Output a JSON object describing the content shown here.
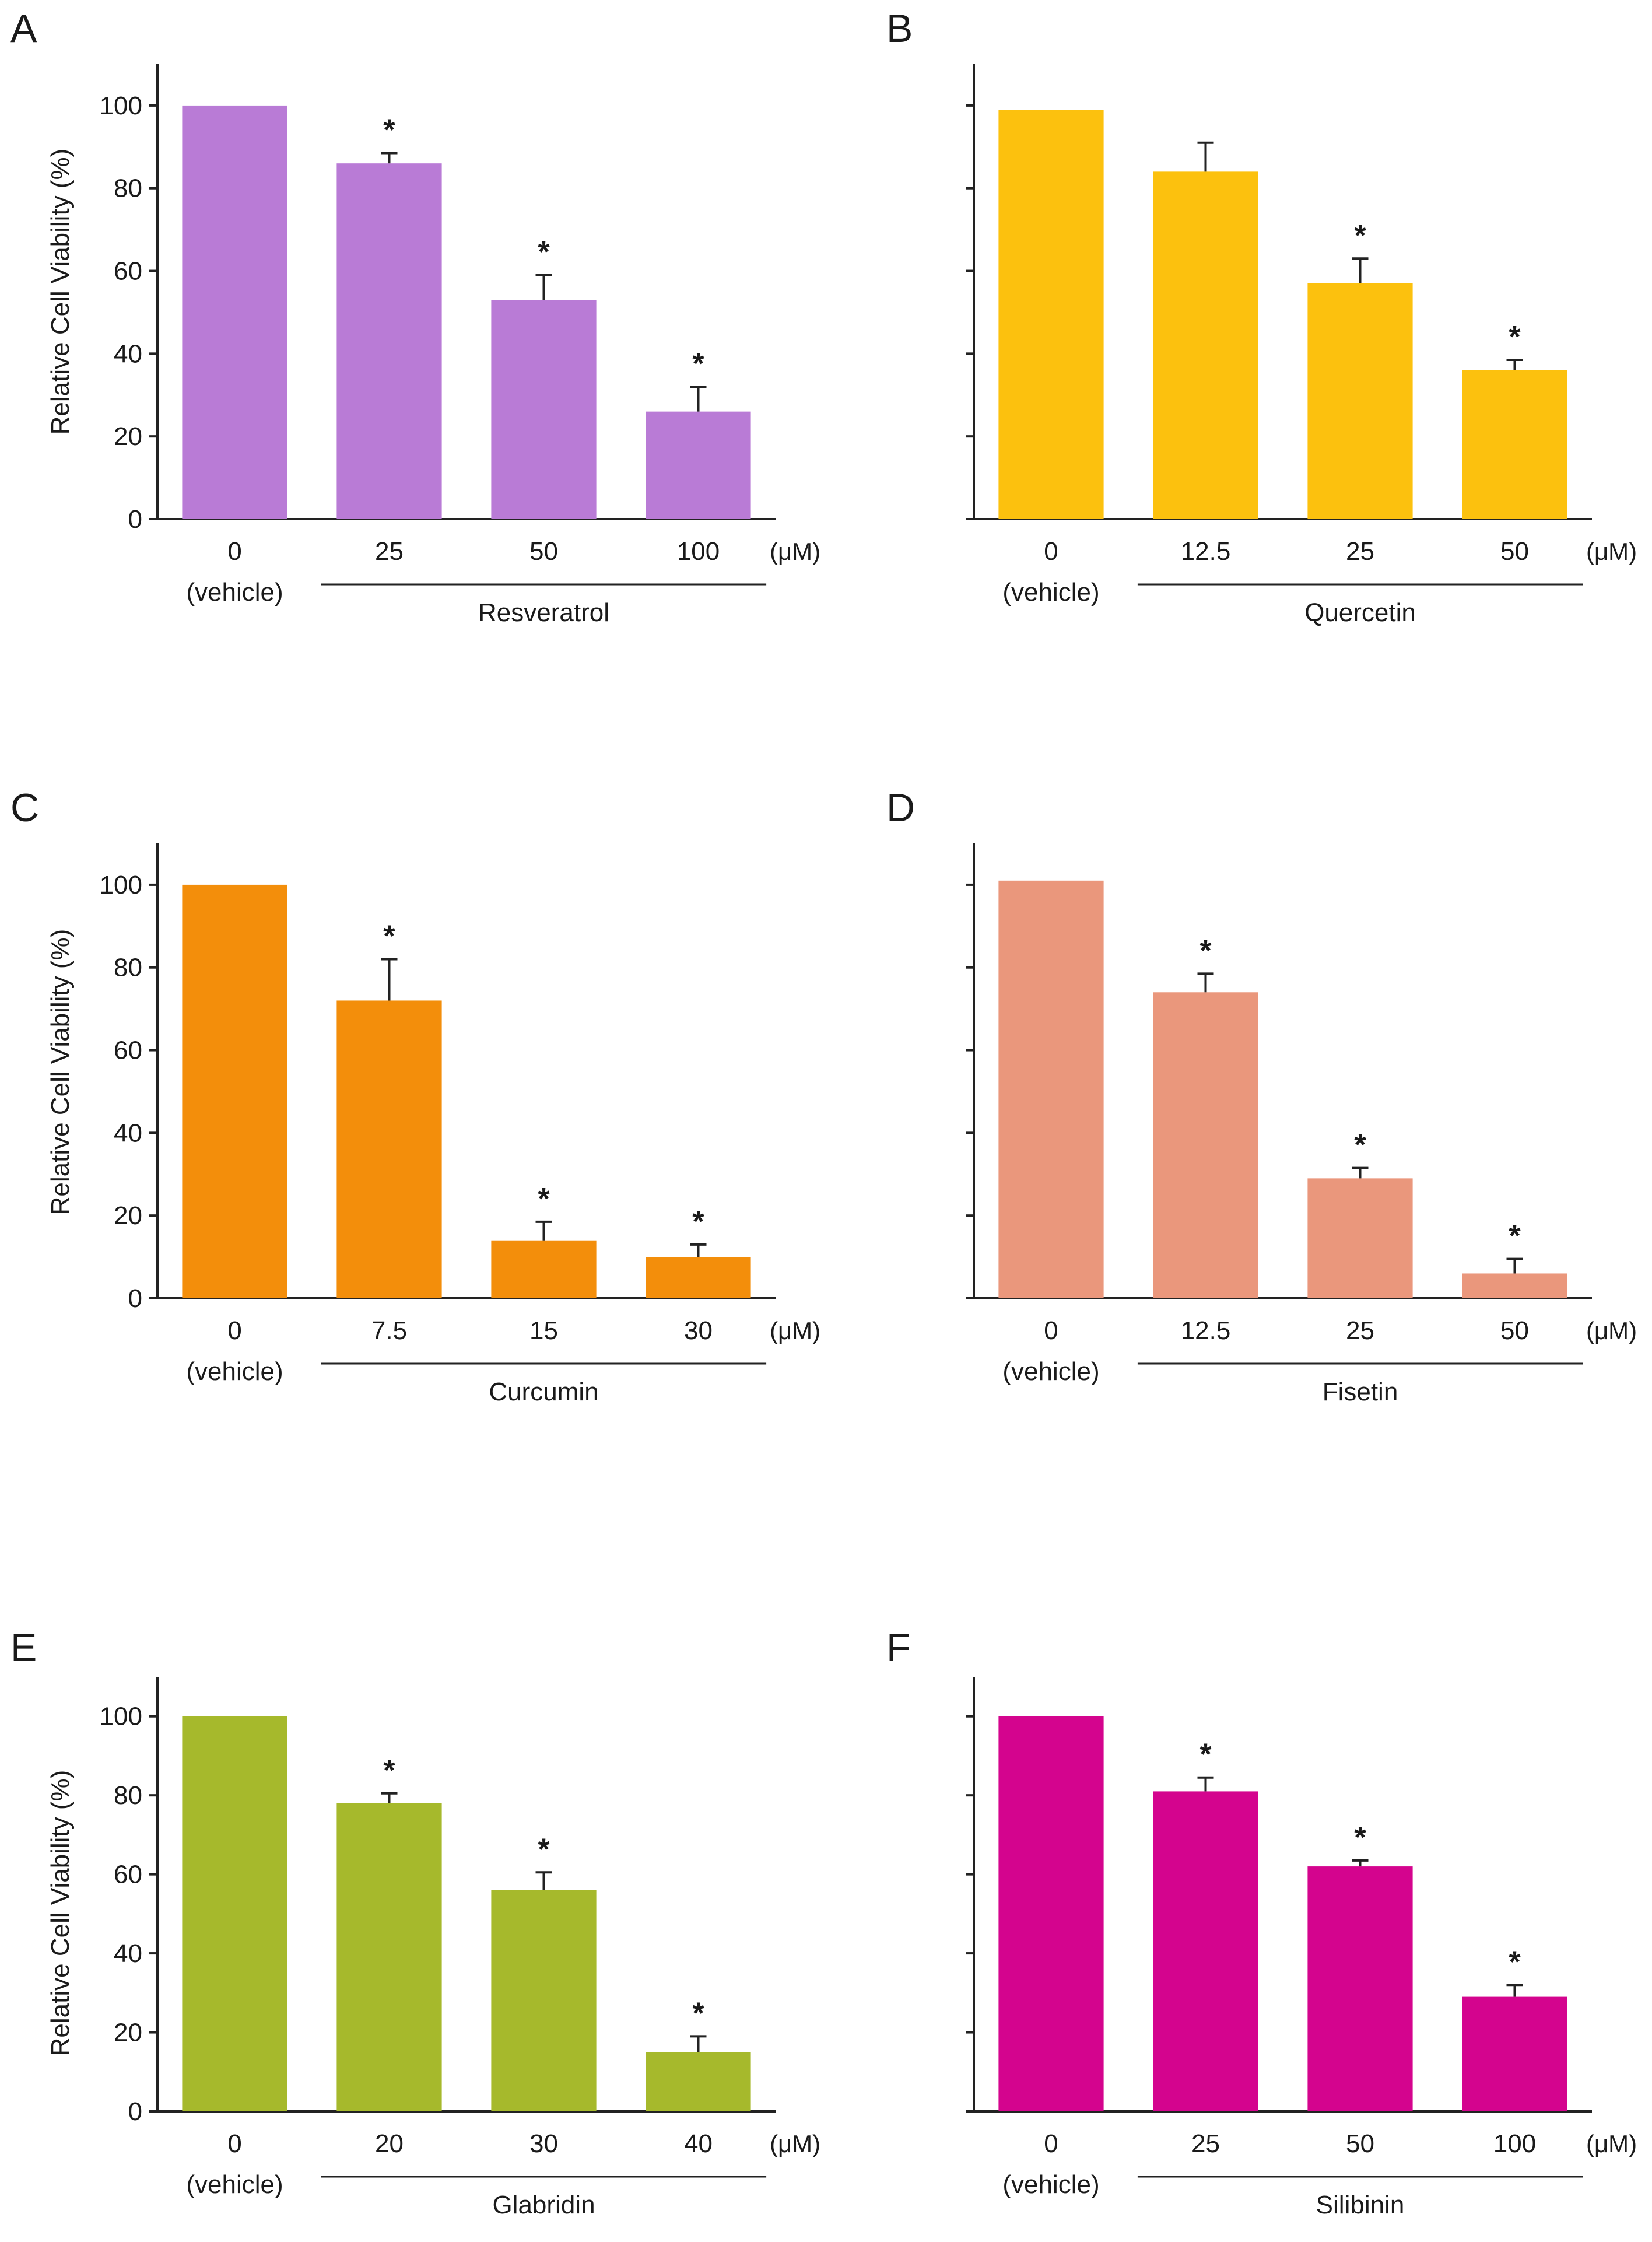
{
  "chart_data": [
    {
      "panel": "A",
      "type": "bar",
      "compound": "Resveratrol",
      "unit": "(μM)",
      "ylabel": "Relative Cell Viability (%)",
      "ylim": [
        0,
        110
      ],
      "yticks": [
        "0",
        "20",
        "40",
        "60",
        "80",
        "100"
      ],
      "categories": [
        "0",
        "25",
        "50",
        "100"
      ],
      "vehicle_label": "(vehicle)",
      "values": [
        100,
        86,
        53,
        26
      ],
      "errors": [
        0,
        2.5,
        6,
        6
      ],
      "significant": [
        false,
        true,
        true,
        true
      ],
      "star": "*",
      "color": "#b97bd6"
    },
    {
      "panel": "B",
      "type": "bar",
      "compound": "Quercetin",
      "unit": "(μM)",
      "ylabel": "",
      "ylim": [
        0,
        110
      ],
      "yticks": [],
      "categories": [
        "0",
        "12.5",
        "25",
        "50"
      ],
      "vehicle_label": "(vehicle)",
      "values": [
        99,
        84,
        57,
        36
      ],
      "errors": [
        0,
        7,
        6,
        2.5
      ],
      "significant": [
        false,
        false,
        true,
        true
      ],
      "star": "*",
      "color": "#fcc10e"
    },
    {
      "panel": "C",
      "type": "bar",
      "compound": "Curcumin",
      "unit": "(μM)",
      "ylabel": "Relative Cell Viability (%)",
      "ylim": [
        0,
        110
      ],
      "yticks": [
        "0",
        "20",
        "40",
        "60",
        "80",
        "100"
      ],
      "categories": [
        "0",
        "7.5",
        "15",
        "30"
      ],
      "vehicle_label": "(vehicle)",
      "values": [
        100,
        72,
        14,
        10
      ],
      "errors": [
        0,
        10,
        4.5,
        3
      ],
      "significant": [
        false,
        true,
        true,
        true
      ],
      "star": "*",
      "color": "#f38e0b"
    },
    {
      "panel": "D",
      "type": "bar",
      "compound": "Fisetin",
      "unit": "(μM)",
      "ylabel": "",
      "ylim": [
        0,
        110
      ],
      "yticks": [],
      "categories": [
        "0",
        "12.5",
        "25",
        "50"
      ],
      "vehicle_label": "(vehicle)",
      "values": [
        101,
        74,
        29,
        6
      ],
      "errors": [
        0,
        4.5,
        2.5,
        3.5
      ],
      "significant": [
        false,
        true,
        true,
        true
      ],
      "star": "*",
      "color": "#ea977c"
    },
    {
      "panel": "E",
      "type": "bar",
      "compound": "Glabridin",
      "unit": "(μM)",
      "ylabel": "Relative Cell Viability (%)",
      "ylim": [
        0,
        110
      ],
      "yticks": [
        "0",
        "20",
        "40",
        "60",
        "80",
        "100"
      ],
      "categories": [
        "0",
        "20",
        "30",
        "40"
      ],
      "vehicle_label": "(vehicle)",
      "values": [
        100,
        78,
        56,
        15
      ],
      "errors": [
        0,
        2.5,
        4.5,
        4
      ],
      "significant": [
        false,
        true,
        true,
        true
      ],
      "star": "*",
      "color": "#a6b92c"
    },
    {
      "panel": "F",
      "type": "bar",
      "compound": "Silibinin",
      "unit": "(μM)",
      "ylabel": "",
      "ylim": [
        0,
        110
      ],
      "yticks": [],
      "categories": [
        "0",
        "25",
        "50",
        "100"
      ],
      "vehicle_label": "(vehicle)",
      "values": [
        100,
        81,
        62,
        29
      ],
      "errors": [
        0,
        3.5,
        1.5,
        3
      ],
      "significant": [
        false,
        true,
        true,
        true
      ],
      "star": "*",
      "color": "#d4048e"
    }
  ]
}
